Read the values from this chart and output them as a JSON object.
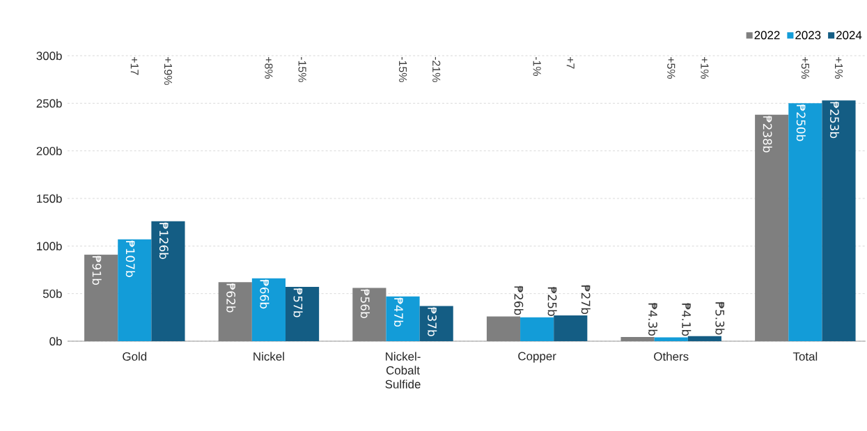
{
  "chart_data": {
    "type": "bar",
    "categories": [
      "Gold",
      "Nickel",
      "Nickel-Cobalt Sulfide",
      "Copper",
      "Others",
      "Total"
    ],
    "series": [
      {
        "name": "2022",
        "color": "#7f7f7f",
        "values": [
          91,
          62,
          56,
          26,
          4.3,
          238
        ],
        "value_labels": [
          "₱91b",
          "₱62b",
          "₱56b",
          "₱26b",
          "₱4.3b",
          "₱238b"
        ]
      },
      {
        "name": "2023",
        "color": "#139cd8",
        "values": [
          107,
          66,
          47,
          25,
          4.1,
          250
        ],
        "value_labels": [
          "₱107b",
          "₱66b",
          "₱47b",
          "₱25b",
          "₱4.1b",
          "₱250b"
        ]
      },
      {
        "name": "2024",
        "color": "#145d84",
        "values": [
          126,
          57,
          37,
          27,
          5.3,
          253
        ],
        "value_labels": [
          "₱126b",
          "₱57b",
          "₱37b",
          "₱27b",
          "₱5.3b",
          "₱253b"
        ]
      }
    ],
    "ylim": [
      0,
      300
    ],
    "yticks": [
      {
        "value": 0,
        "label": "0b"
      },
      {
        "value": 50,
        "label": "50b"
      },
      {
        "value": 100,
        "label": "100b"
      },
      {
        "value": 150,
        "label": "150b"
      },
      {
        "value": 200,
        "label": "200b"
      },
      {
        "value": 250,
        "label": "250b"
      },
      {
        "value": 300,
        "label": "300b"
      }
    ],
    "annotations": [
      "+17",
      "+19%",
      "+8%",
      "-15%",
      "-15%",
      "-21%",
      "-1%",
      "+7",
      "+5%",
      "+1%",
      "+5%",
      "+1%"
    ],
    "grid": "y",
    "legend": "top right"
  }
}
